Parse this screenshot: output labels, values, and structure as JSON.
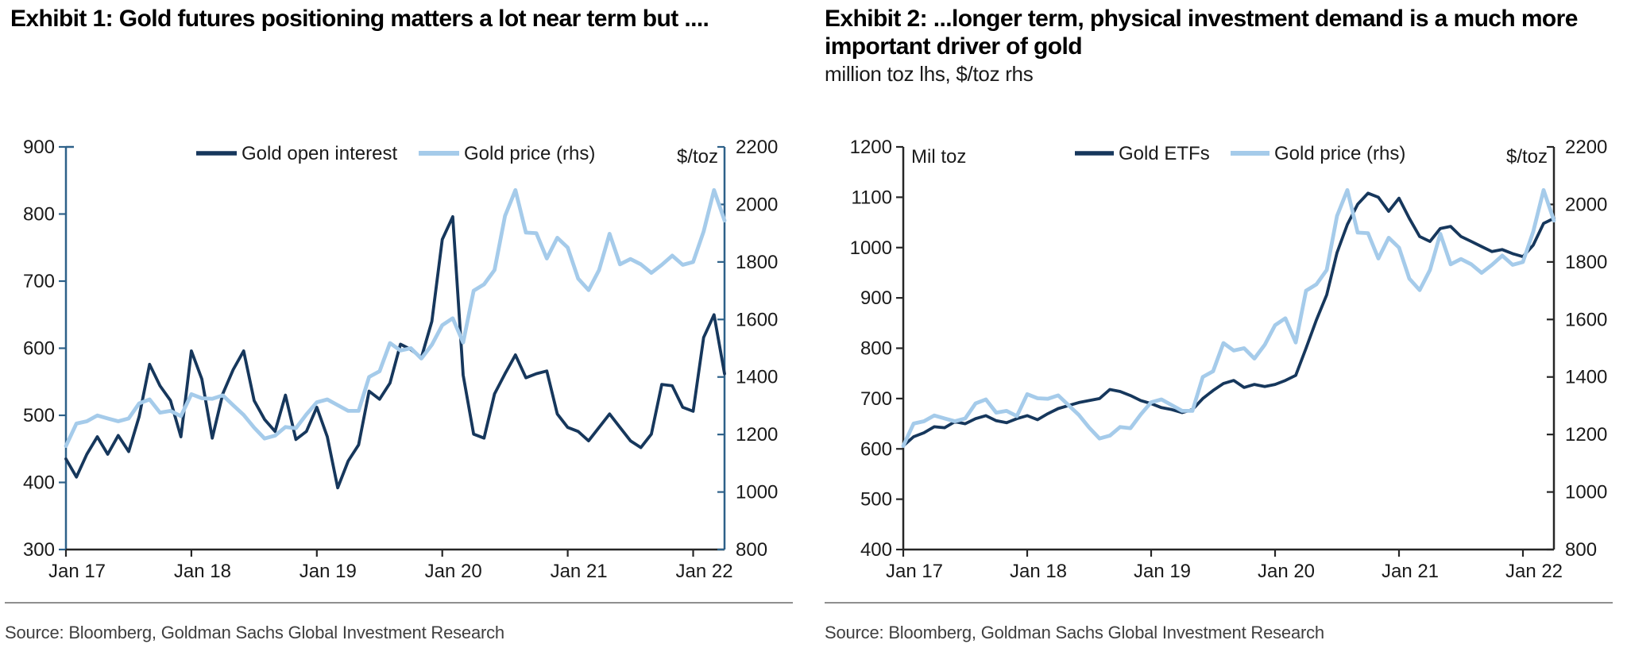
{
  "panels": [
    {
      "source": "Source: Bloomberg, Goldman Sachs Global Investment Research"
    },
    {
      "source": "Source: Bloomberg, Goldman Sachs Global Investment Research"
    }
  ],
  "colors": {
    "dark_navy_series": "#16375C",
    "light_blue_series": "#A5CBEA",
    "ex1_vertical_axis": "#2E6189",
    "black_axis": "#262626",
    "tick_label": "#1a1a1a",
    "title": "#000000",
    "source_text": "#3f3f3f"
  },
  "chart_data": [
    {
      "type": "line",
      "title": "Exhibit 1: Gold futures positioning matters a lot near term but ....",
      "subtitle": "",
      "left_axis_label": "",
      "right_axis_label": "$/toz",
      "axis_color": "#2E6189",
      "grid": false,
      "legend_position": "top-center",
      "x_start": "Jan 2017",
      "x_end": "Apr 2022",
      "x_ticks": [
        "Jan 17",
        "Jan 18",
        "Jan 19",
        "Jan 20",
        "Jan 21",
        "Jan 22"
      ],
      "ylim_left": [
        300,
        900
      ],
      "y_left_ticks": [
        900,
        800,
        700,
        600,
        500,
        400,
        300
      ],
      "ylim_right": [
        800,
        2200
      ],
      "y_right_ticks": [
        2200,
        2000,
        1800,
        1600,
        1400,
        1200,
        1000,
        800
      ],
      "series": [
        {
          "name": "Gold open interest",
          "axis": "left",
          "color": "#16375C",
          "width": 3.8,
          "values": [
            435,
            408,
            442,
            468,
            442,
            470,
            446,
            498,
            576,
            544,
            522,
            468,
            596,
            554,
            466,
            532,
            568,
            596,
            522,
            494,
            476,
            530,
            464,
            476,
            512,
            468,
            392,
            432,
            456,
            536,
            524,
            548,
            606,
            598,
            586,
            640,
            762,
            796,
            560,
            472,
            466,
            532,
            562,
            590,
            556,
            562,
            566,
            502,
            482,
            476,
            462,
            482,
            502,
            482,
            462,
            452,
            472,
            546,
            544,
            512,
            506,
            616,
            650,
            562
          ]
        },
        {
          "name": "Gold price (rhs)",
          "axis": "right",
          "color": "#A5CBEA",
          "width": 4.8,
          "values": [
            1160,
            1238,
            1246,
            1266,
            1256,
            1246,
            1256,
            1308,
            1322,
            1276,
            1282,
            1264,
            1340,
            1326,
            1324,
            1336,
            1302,
            1268,
            1224,
            1186,
            1196,
            1226,
            1222,
            1270,
            1312,
            1322,
            1302,
            1282,
            1282,
            1400,
            1420,
            1518,
            1492,
            1500,
            1464,
            1512,
            1580,
            1604,
            1520,
            1700,
            1722,
            1772,
            1960,
            2050,
            1902,
            1900,
            1812,
            1884,
            1850,
            1742,
            1702,
            1772,
            1898,
            1792,
            1810,
            1792,
            1762,
            1790,
            1822,
            1790,
            1800,
            1906,
            2050,
            1944
          ]
        }
      ]
    },
    {
      "type": "line",
      "title": "Exhibit 2: ...longer term, physical investment demand is a much more important driver of gold",
      "subtitle": "million toz lhs, $/toz rhs",
      "left_axis_label": "Mil toz",
      "right_axis_label": "$/toz",
      "axis_color": "#262626",
      "grid": false,
      "legend_position": "top-center",
      "x_start": "Jan 2017",
      "x_end": "Apr 2022",
      "x_ticks": [
        "Jan 17",
        "Jan 18",
        "Jan 19",
        "Jan 20",
        "Jan 21",
        "Jan 22"
      ],
      "ylim_left": [
        400,
        1200
      ],
      "y_left_ticks": [
        1200,
        1100,
        1000,
        900,
        800,
        700,
        600,
        500,
        400
      ],
      "ylim_right": [
        800,
        2200
      ],
      "y_right_ticks": [
        2200,
        2000,
        1800,
        1600,
        1400,
        1200,
        1000,
        800
      ],
      "series": [
        {
          "name": "Gold ETFs",
          "axis": "left",
          "color": "#16375C",
          "width": 3.8,
          "values": [
            606,
            624,
            632,
            644,
            642,
            654,
            650,
            660,
            666,
            656,
            652,
            660,
            666,
            658,
            670,
            680,
            686,
            692,
            696,
            700,
            718,
            714,
            706,
            696,
            690,
            682,
            678,
            672,
            678,
            700,
            716,
            730,
            736,
            722,
            728,
            724,
            728,
            736,
            746,
            800,
            856,
            906,
            990,
            1046,
            1086,
            1108,
            1100,
            1072,
            1098,
            1058,
            1022,
            1012,
            1038,
            1042,
            1022,
            1012,
            1002,
            992,
            996,
            988,
            982,
            1005,
            1048,
            1058
          ]
        },
        {
          "name": "Gold price (rhs)",
          "axis": "right",
          "color": "#A5CBEA",
          "width": 4.8,
          "values": [
            1160,
            1238,
            1246,
            1266,
            1256,
            1246,
            1256,
            1308,
            1322,
            1276,
            1282,
            1264,
            1340,
            1326,
            1324,
            1336,
            1302,
            1268,
            1224,
            1186,
            1196,
            1226,
            1222,
            1270,
            1312,
            1322,
            1302,
            1282,
            1282,
            1400,
            1420,
            1518,
            1492,
            1500,
            1464,
            1512,
            1580,
            1604,
            1520,
            1700,
            1722,
            1772,
            1960,
            2050,
            1902,
            1900,
            1812,
            1884,
            1850,
            1742,
            1702,
            1772,
            1898,
            1792,
            1810,
            1792,
            1762,
            1790,
            1822,
            1790,
            1800,
            1906,
            2050,
            1944
          ]
        }
      ]
    }
  ]
}
